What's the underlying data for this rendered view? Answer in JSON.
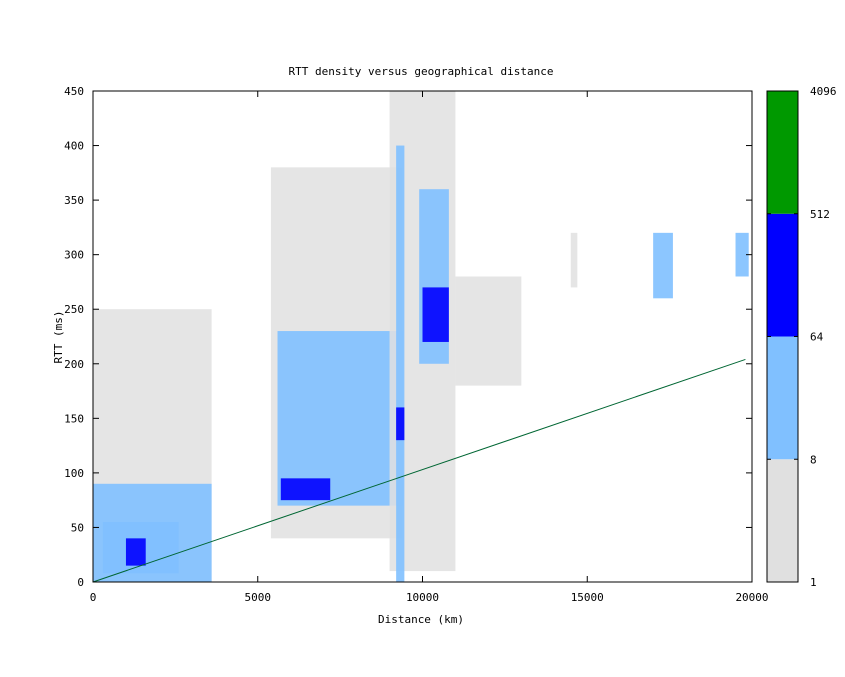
{
  "chart_data": {
    "type": "heatmap",
    "title": "RTT density versus geographical distance",
    "xlabel": "Distance (km)",
    "ylabel": "RTT (ms)",
    "xlim": [
      0,
      20000
    ],
    "ylim": [
      0,
      450
    ],
    "x_ticks": [
      0,
      5000,
      10000,
      15000,
      20000
    ],
    "y_ticks": [
      0,
      50,
      100,
      150,
      200,
      250,
      300,
      350,
      400,
      450
    ],
    "colorbar": {
      "scale": "log2",
      "bins": [
        {
          "from": 1,
          "to": 8,
          "color": "#e0e0e0"
        },
        {
          "from": 8,
          "to": 64,
          "color": "#80c0ff"
        },
        {
          "from": 64,
          "to": 512,
          "color": "#0000ff"
        },
        {
          "from": 512,
          "to": 4096,
          "color": "#009900"
        }
      ],
      "tick_labels": [
        "1",
        "8",
        "64",
        "512",
        "4096"
      ]
    },
    "reference_line": {
      "color": "#006633",
      "points": [
        [
          0,
          0
        ],
        [
          19800,
          204
        ]
      ]
    },
    "density_regions": [
      {
        "x": [
          0,
          3600
        ],
        "y": [
          0,
          250
        ],
        "level": 0
      },
      {
        "x": [
          0,
          3600
        ],
        "y": [
          0,
          90
        ],
        "level": 1
      },
      {
        "x": [
          300,
          2600
        ],
        "y": [
          8,
          55
        ],
        "level": 1
      },
      {
        "x": [
          1000,
          1600
        ],
        "y": [
          15,
          40
        ],
        "level": 2
      },
      {
        "x": [
          5400,
          9400
        ],
        "y": [
          40,
          380
        ],
        "level": 0
      },
      {
        "x": [
          5600,
          9400
        ],
        "y": [
          70,
          230
        ],
        "level": 1
      },
      {
        "x": [
          5700,
          7200
        ],
        "y": [
          75,
          95
        ],
        "level": 2
      },
      {
        "x": [
          9000,
          11000
        ],
        "y": [
          10,
          450
        ],
        "level": 0
      },
      {
        "x": [
          9200,
          9450
        ],
        "y": [
          0,
          400
        ],
        "level": 1
      },
      {
        "x": [
          9200,
          9450
        ],
        "y": [
          130,
          160
        ],
        "level": 2
      },
      {
        "x": [
          9900,
          10800
        ],
        "y": [
          200,
          360
        ],
        "level": 1
      },
      {
        "x": [
          10000,
          10800
        ],
        "y": [
          220,
          270
        ],
        "level": 2
      },
      {
        "x": [
          11000,
          13000
        ],
        "y": [
          180,
          280
        ],
        "level": 0
      },
      {
        "x": [
          14500,
          14700
        ],
        "y": [
          270,
          320
        ],
        "level": 0
      },
      {
        "x": [
          17000,
          17600
        ],
        "y": [
          260,
          320
        ],
        "level": 1
      },
      {
        "x": [
          19500,
          19900
        ],
        "y": [
          280,
          320
        ],
        "level": 1
      }
    ]
  }
}
